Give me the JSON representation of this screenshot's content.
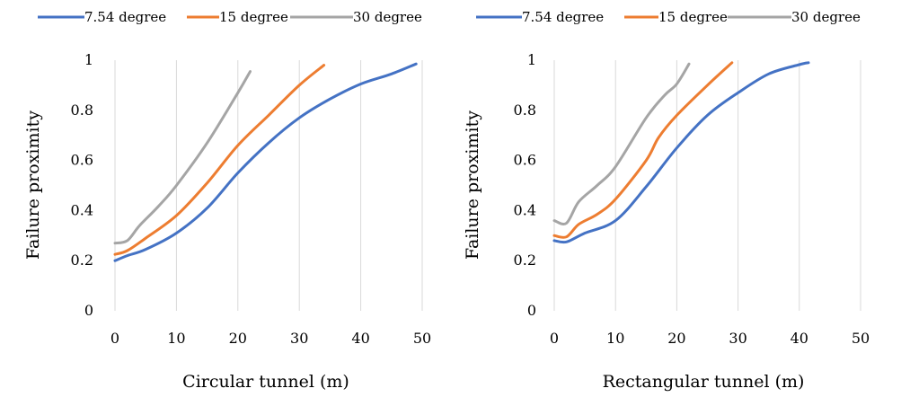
{
  "chart_data": [
    {
      "type": "line",
      "xlabel": "Circular tunnel (m)",
      "ylabel": "Failure proximity",
      "xlim": [
        0,
        50
      ],
      "ylim": [
        0,
        1
      ],
      "xticks": [
        0,
        10,
        20,
        30,
        40,
        50
      ],
      "yticks": [
        0,
        0.2,
        0.4,
        0.6,
        0.8,
        1
      ],
      "ytick_labels": [
        "0",
        "0.2",
        "0.4",
        "0.6",
        "0.8",
        "1"
      ],
      "grid": "vertical",
      "legend_position": "top",
      "series": [
        {
          "name": "7.54 degree",
          "color": "#4472c4",
          "points": [
            [
              0,
              0.2
            ],
            [
              2,
              0.22
            ],
            [
              5,
              0.245
            ],
            [
              10,
              0.31
            ],
            [
              15,
              0.41
            ],
            [
              20,
              0.55
            ],
            [
              25,
              0.67
            ],
            [
              30,
              0.77
            ],
            [
              35,
              0.845
            ],
            [
              40,
              0.905
            ],
            [
              45,
              0.945
            ],
            [
              49,
              0.985
            ]
          ]
        },
        {
          "name": "15 degree",
          "color": "#ed7d31",
          "points": [
            [
              0,
              0.225
            ],
            [
              2,
              0.24
            ],
            [
              5,
              0.29
            ],
            [
              10,
              0.38
            ],
            [
              15,
              0.51
            ],
            [
              20,
              0.66
            ],
            [
              25,
              0.78
            ],
            [
              30,
              0.9
            ],
            [
              34,
              0.98
            ]
          ]
        },
        {
          "name": "30 degree",
          "color": "#a5a5a5",
          "points": [
            [
              0,
              0.27
            ],
            [
              2,
              0.28
            ],
            [
              4,
              0.34
            ],
            [
              7,
              0.415
            ],
            [
              10,
              0.5
            ],
            [
              15,
              0.67
            ],
            [
              20,
              0.87
            ],
            [
              22,
              0.955
            ]
          ]
        }
      ]
    },
    {
      "type": "line",
      "xlabel": "Rectangular tunnel (m)",
      "ylabel": "Failure proximity",
      "xlim": [
        0,
        50
      ],
      "ylim": [
        0,
        1
      ],
      "xticks": [
        0,
        10,
        20,
        30,
        40,
        50
      ],
      "yticks": [
        0,
        0.2,
        0.4,
        0.6,
        0.8,
        1
      ],
      "ytick_labels": [
        "0",
        "0.2",
        "0.4",
        "0.6",
        "0.8",
        "1"
      ],
      "grid": "vertical",
      "legend_position": "top",
      "series": [
        {
          "name": "7.54 degree",
          "color": "#4472c4",
          "points": [
            [
              0,
              0.28
            ],
            [
              2,
              0.275
            ],
            [
              5,
              0.31
            ],
            [
              10,
              0.36
            ],
            [
              15,
              0.495
            ],
            [
              20,
              0.65
            ],
            [
              25,
              0.78
            ],
            [
              30,
              0.87
            ],
            [
              35,
              0.945
            ],
            [
              40,
              0.982
            ],
            [
              41.5,
              0.99
            ]
          ]
        },
        {
          "name": "15 degree",
          "color": "#ed7d31",
          "points": [
            [
              0,
              0.3
            ],
            [
              2,
              0.295
            ],
            [
              4,
              0.345
            ],
            [
              7,
              0.385
            ],
            [
              10,
              0.445
            ],
            [
              15,
              0.6
            ],
            [
              17,
              0.69
            ],
            [
              20,
              0.78
            ],
            [
              25,
              0.9
            ],
            [
              29,
              0.99
            ]
          ]
        },
        {
          "name": "30 degree",
          "color": "#a5a5a5",
          "points": [
            [
              0,
              0.36
            ],
            [
              2,
              0.35
            ],
            [
              4,
              0.435
            ],
            [
              7,
              0.5
            ],
            [
              10,
              0.575
            ],
            [
              15,
              0.77
            ],
            [
              18,
              0.86
            ],
            [
              20,
              0.905
            ],
            [
              22,
              0.985
            ]
          ]
        }
      ]
    }
  ]
}
